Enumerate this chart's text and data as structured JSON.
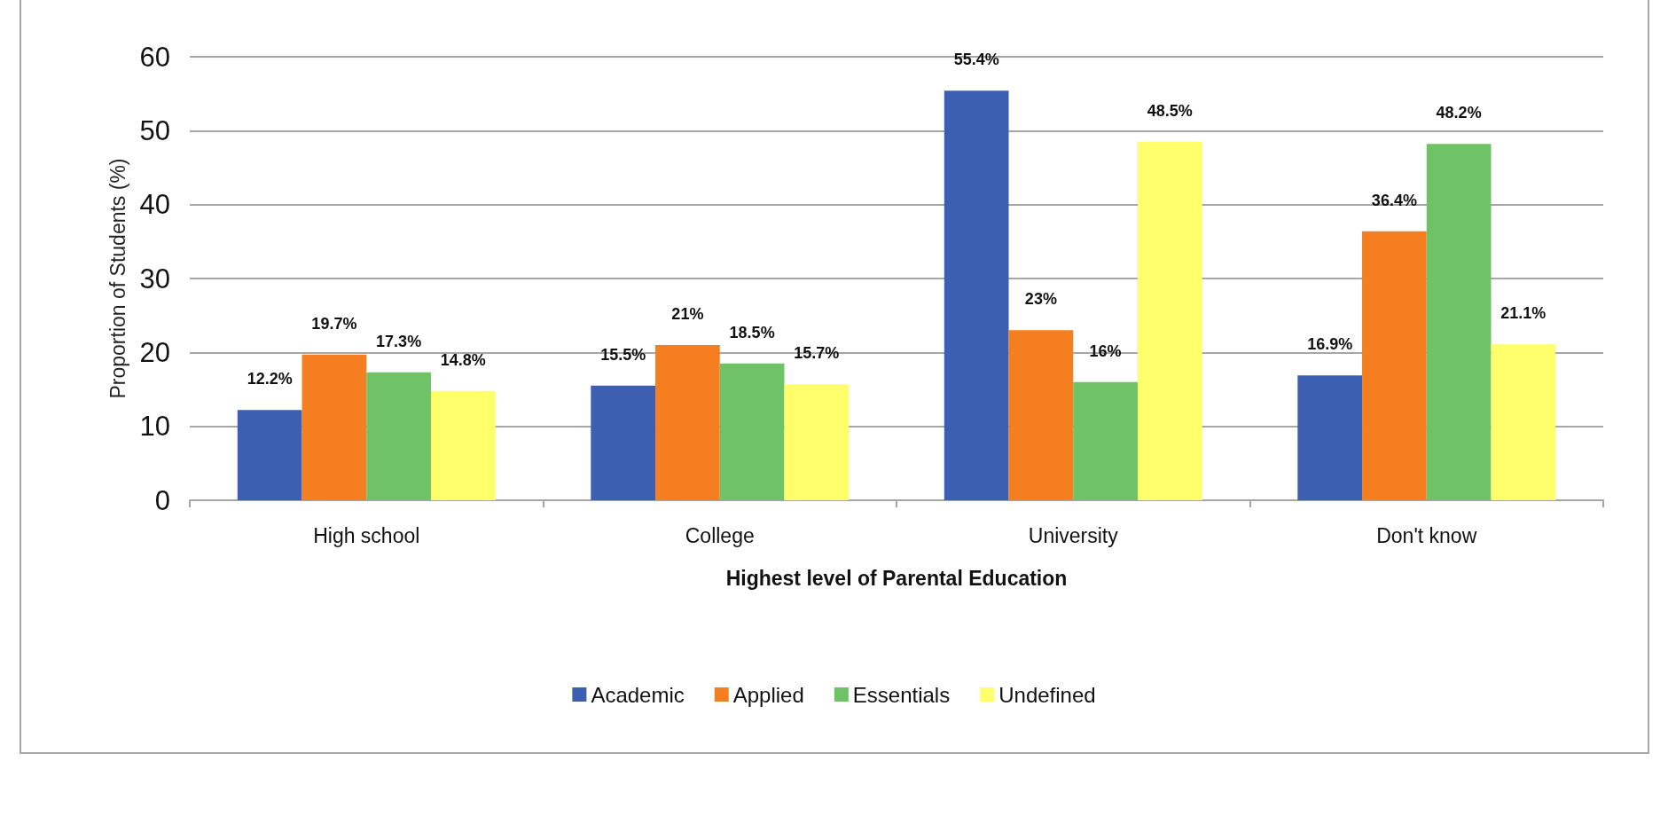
{
  "chart_data": {
    "type": "bar",
    "xlabel": "Highest level of Parental Education",
    "ylabel": "Proportion of Students (%)",
    "categories": [
      "High school",
      "College",
      "University",
      "Don't know"
    ],
    "series": [
      {
        "name": "Academic",
        "color": "#3c5fb1",
        "values": [
          12.2,
          15.5,
          55.4,
          16.9
        ],
        "value_labels": [
          "12.2%",
          "15.5%",
          "55.4%",
          "16.9%"
        ]
      },
      {
        "name": "Applied",
        "color": "#f47e20",
        "values": [
          19.7,
          21,
          23,
          36.4
        ],
        "value_labels": [
          "19.7%",
          "21%",
          "23%",
          "36.4%"
        ]
      },
      {
        "name": "Essentials",
        "color": "#70c267",
        "values": [
          17.3,
          18.5,
          16,
          48.2
        ],
        "value_labels": [
          "17.3%",
          "18.5%",
          "16%",
          "48.2%"
        ]
      },
      {
        "name": "Undefined",
        "color": "#ffff6b",
        "values": [
          14.8,
          15.7,
          48.5,
          21.1
        ],
        "value_labels": [
          "14.8%",
          "15.7%",
          "48.5%",
          "21.1%"
        ]
      }
    ],
    "ylim": [
      0,
      60
    ],
    "yticks": [
      0,
      10,
      20,
      30,
      40,
      50,
      60
    ],
    "grid": "y",
    "legend": "bottom"
  }
}
